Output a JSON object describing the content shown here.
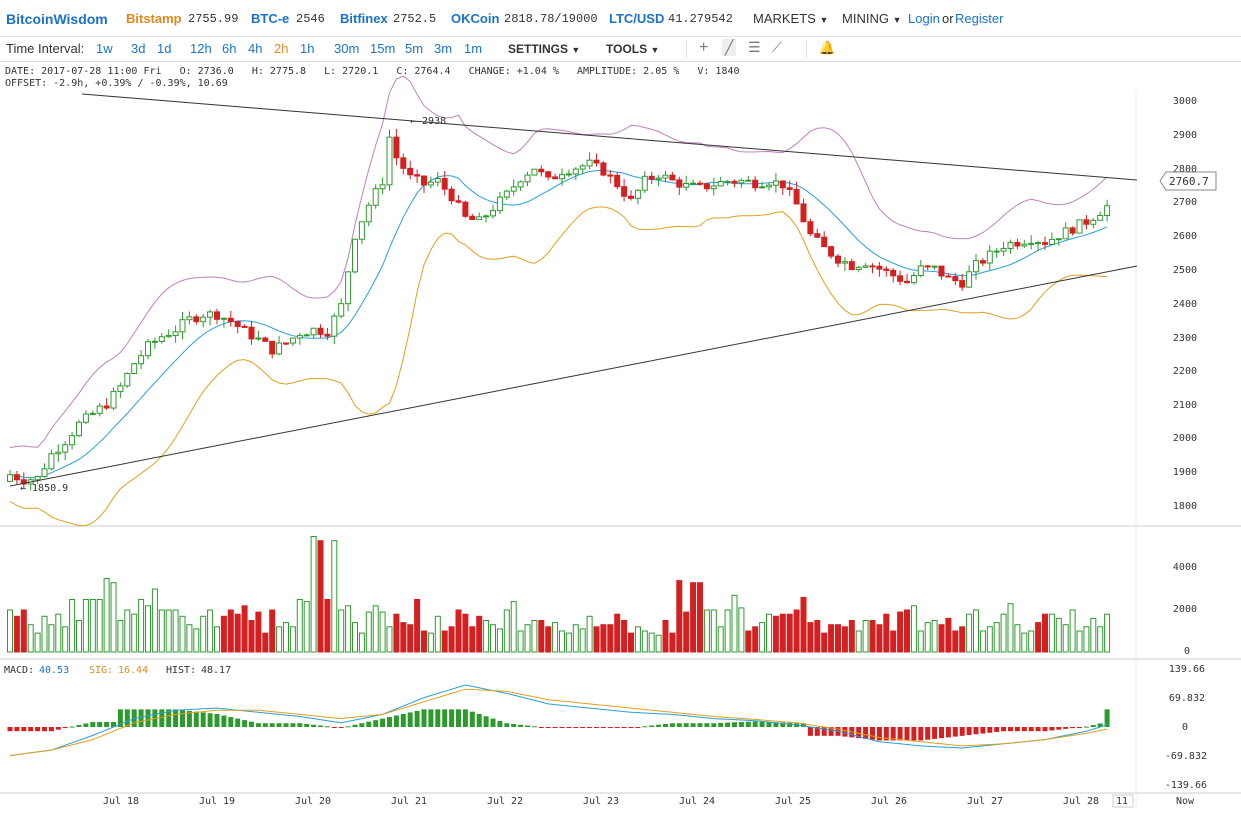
{
  "brand": "BitcoinWisdom",
  "tickers": [
    {
      "name": "Bitstamp",
      "price": "2755.99",
      "color": "#e0891b"
    },
    {
      "name": "BTC-e",
      "price": "2546",
      "color": "#1a73c9"
    },
    {
      "name": "Bitfinex",
      "price": "2752.5",
      "color": "#1a73c9"
    },
    {
      "name": "OKCoin",
      "price": "2818.78/19000",
      "color": "#1a73c9"
    },
    {
      "name": "LTC/USD",
      "price": "41.279542",
      "color": "#1a73c9"
    }
  ],
  "nav": {
    "markets": "MARKETS",
    "mining": "MINING",
    "login": "Login",
    "or": "or",
    "register": "Register"
  },
  "toolbar": {
    "time_interval_label": "Time Interval:",
    "intervals": [
      "1w",
      "3d",
      "1d",
      "12h",
      "6h",
      "4h",
      "2h",
      "1h",
      "30m",
      "15m",
      "5m",
      "3m",
      "1m"
    ],
    "active_interval": "2h",
    "settings": "SETTINGS",
    "tools": "TOOLS"
  },
  "info": {
    "line1": "DATE: 2017-07-28 11:00 Fri   O: 2736.0   H: 2775.8   L: 2720.1   C: 2764.4   CHANGE: +1.04 %   AMPLITUDE: 2.05 %   V: 1840",
    "line2": "OFFSET: -2.9h, +0.39% / -0.39%, 10.69"
  },
  "price_axis": [
    "3000",
    "2900",
    "2800",
    "2700",
    "2600",
    "2500",
    "2400",
    "2300",
    "2200",
    "2100",
    "2000",
    "1900",
    "1800"
  ],
  "volume_axis": [
    "4000",
    "2000",
    "0"
  ],
  "macd_axis": [
    "139.66",
    "69.832",
    "0",
    "-69.832",
    "-139.66"
  ],
  "macd_legend": {
    "macd_label": "MACD:",
    "macd_value": "40.53",
    "sig_label": "SIG:",
    "sig_value": "16.44",
    "hist_label": "HIST:",
    "hist_value": "48.17"
  },
  "annotations": {
    "high": "← 2938",
    "low": "← 1850.9",
    "current_price": "2760.7"
  },
  "date_axis": [
    "Jul 18",
    "Jul 19",
    "Jul 20",
    "Jul 21",
    "Jul 22",
    "Jul 23",
    "Jul 24",
    "Jul 25",
    "Jul 26",
    "Jul 27",
    "Jul 28",
    "11",
    "Now"
  ],
  "colors": {
    "up": "#2e9a2e",
    "down": "#d42020",
    "ma": "#2a9fd6",
    "upper_band": "#c080c0",
    "lower_band": "#e0a020",
    "accent": "#1a73c9",
    "active": "#e0891b"
  },
  "chart_data": {
    "type": "candlestick",
    "title": "",
    "ylim": [
      1780,
      3020
    ],
    "volume_ylim": [
      0,
      5500
    ],
    "macd_ylim": [
      -150,
      150
    ],
    "price_path": [
      [
        0,
        1890
      ],
      [
        2,
        1875
      ],
      [
        4,
        1880
      ],
      [
        6,
        1950
      ],
      [
        8,
        1990
      ],
      [
        10,
        2040
      ],
      [
        12,
        2070
      ],
      [
        14,
        2100
      ],
      [
        16,
        2150
      ],
      [
        18,
        2220
      ],
      [
        20,
        2270
      ],
      [
        22,
        2300
      ],
      [
        24,
        2320
      ],
      [
        26,
        2350
      ],
      [
        28,
        2365
      ],
      [
        30,
        2365
      ],
      [
        32,
        2345
      ],
      [
        34,
        2315
      ],
      [
        36,
        2290
      ],
      [
        38,
        2260
      ],
      [
        40,
        2280
      ],
      [
        42,
        2310
      ],
      [
        44,
        2320
      ],
      [
        46,
        2315
      ],
      [
        48,
        2390
      ],
      [
        50,
        2600
      ],
      [
        52,
        2690
      ],
      [
        54,
        2760
      ],
      [
        55,
        2890
      ],
      [
        56,
        2830
      ],
      [
        58,
        2770
      ],
      [
        60,
        2750
      ],
      [
        62,
        2760
      ],
      [
        64,
        2715
      ],
      [
        66,
        2650
      ],
      [
        68,
        2640
      ],
      [
        70,
        2680
      ],
      [
        72,
        2720
      ],
      [
        74,
        2770
      ],
      [
        76,
        2800
      ],
      [
        78,
        2760
      ],
      [
        80,
        2790
      ],
      [
        82,
        2800
      ],
      [
        84,
        2810
      ],
      [
        86,
        2790
      ],
      [
        88,
        2750
      ],
      [
        90,
        2700
      ],
      [
        92,
        2760
      ],
      [
        94,
        2780
      ],
      [
        96,
        2760
      ],
      [
        98,
        2745
      ],
      [
        100,
        2740
      ],
      [
        102,
        2750
      ],
      [
        104,
        2760
      ],
      [
        106,
        2760
      ],
      [
        108,
        2755
      ],
      [
        110,
        2760
      ],
      [
        112,
        2750
      ],
      [
        114,
        2690
      ],
      [
        116,
        2600
      ],
      [
        118,
        2560
      ],
      [
        120,
        2530
      ],
      [
        122,
        2510
      ],
      [
        124,
        2520
      ],
      [
        126,
        2500
      ],
      [
        128,
        2480
      ],
      [
        130,
        2460
      ],
      [
        132,
        2500
      ],
      [
        134,
        2500
      ],
      [
        136,
        2470
      ],
      [
        138,
        2460
      ],
      [
        140,
        2510
      ],
      [
        142,
        2540
      ],
      [
        144,
        2570
      ],
      [
        146,
        2580
      ],
      [
        148,
        2590
      ],
      [
        150,
        2580
      ],
      [
        152,
        2600
      ],
      [
        154,
        2620
      ],
      [
        156,
        2640
      ],
      [
        158,
        2670
      ],
      [
        160,
        2700
      ],
      [
        162,
        2730
      ],
      [
        163,
        2764
      ]
    ],
    "volume": [
      2000,
      1700,
      2000,
      1300,
      900,
      1700,
      1300,
      1800,
      1200,
      2500,
      1500,
      2500,
      2500,
      2500,
      3500,
      3300,
      1500,
      2000,
      1800,
      2500,
      2200,
      3000,
      2000,
      2000,
      2000,
      1700,
      1300,
      1100,
      1700,
      2000,
      1200,
      1700,
      2000,
      1800,
      2200,
      1500,
      1900,
      900,
      2000,
      1200,
      1400,
      1200,
      2500,
      2400,
      5500,
      5300,
      2500,
      5300,
      2000,
      2200,
      1400,
      900,
      1900,
      2200,
      1900,
      1200,
      1800,
      1400,
      1300,
      2500,
      1000,
      900,
      1700,
      1000,
      1200,
      2000,
      1800,
      1200,
      1700,
      1500,
      1300,
      1100,
      2000,
      2400,
      1000,
      1300,
      1500,
      1500,
      1200,
      1400,
      1000,
      900,
      1300,
      1100,
      1700,
      1200,
      1300,
      1300,
      1800,
      1500,
      900,
      1200,
      1000,
      900,
      800,
      1500,
      900,
      3400,
      1900,
      3300,
      3300,
      2000,
      2000,
      1200,
      2000,
      2700,
      2100,
      1000,
      1200,
      1400,
      1800,
      1700,
      1800,
      1800,
      2000,
      2600,
      1400,
      1500,
      900,
      1300,
      1300,
      1200,
      1500,
      1000,
      1500,
      1500,
      1300,
      1800,
      1000,
      1900,
      2000,
      2200,
      1000,
      1400,
      1500,
      1300,
      1600,
      1000,
      1200,
      1800,
      2000,
      1000,
      1200,
      1400,
      1800,
      2300,
      1300,
      900,
      1000,
      1400,
      1800,
      1800,
      1600,
      1300,
      2000,
      1000,
      1200,
      1600,
      1200,
      1800
    ],
    "macd_line": [
      [
        0,
        -68
      ],
      [
        6,
        -55
      ],
      [
        12,
        -20
      ],
      [
        18,
        20
      ],
      [
        24,
        40
      ],
      [
        30,
        45
      ],
      [
        36,
        35
      ],
      [
        42,
        25
      ],
      [
        48,
        10
      ],
      [
        54,
        30
      ],
      [
        60,
        70
      ],
      [
        66,
        100
      ],
      [
        72,
        80
      ],
      [
        78,
        55
      ],
      [
        84,
        45
      ],
      [
        90,
        35
      ],
      [
        96,
        30
      ],
      [
        102,
        20
      ],
      [
        108,
        15
      ],
      [
        114,
        5
      ],
      [
        120,
        -10
      ],
      [
        126,
        -35
      ],
      [
        132,
        -45
      ],
      [
        138,
        -50
      ],
      [
        144,
        -40
      ],
      [
        150,
        -30
      ],
      [
        156,
        -10
      ],
      [
        162,
        20
      ],
      [
        164,
        40.53
      ]
    ],
    "signal_line": [
      [
        0,
        -68
      ],
      [
        6,
        -55
      ],
      [
        12,
        -30
      ],
      [
        18,
        10
      ],
      [
        24,
        30
      ],
      [
        30,
        40
      ],
      [
        36,
        40
      ],
      [
        42,
        30
      ],
      [
        48,
        20
      ],
      [
        54,
        30
      ],
      [
        60,
        60
      ],
      [
        66,
        90
      ],
      [
        72,
        85
      ],
      [
        78,
        65
      ],
      [
        84,
        55
      ],
      [
        90,
        45
      ],
      [
        96,
        35
      ],
      [
        102,
        25
      ],
      [
        108,
        18
      ],
      [
        114,
        10
      ],
      [
        120,
        -5
      ],
      [
        126,
        -25
      ],
      [
        132,
        -35
      ],
      [
        138,
        -45
      ],
      [
        144,
        -40
      ],
      [
        150,
        -30
      ],
      [
        156,
        -15
      ],
      [
        162,
        5
      ],
      [
        164,
        16.44
      ]
    ]
  }
}
